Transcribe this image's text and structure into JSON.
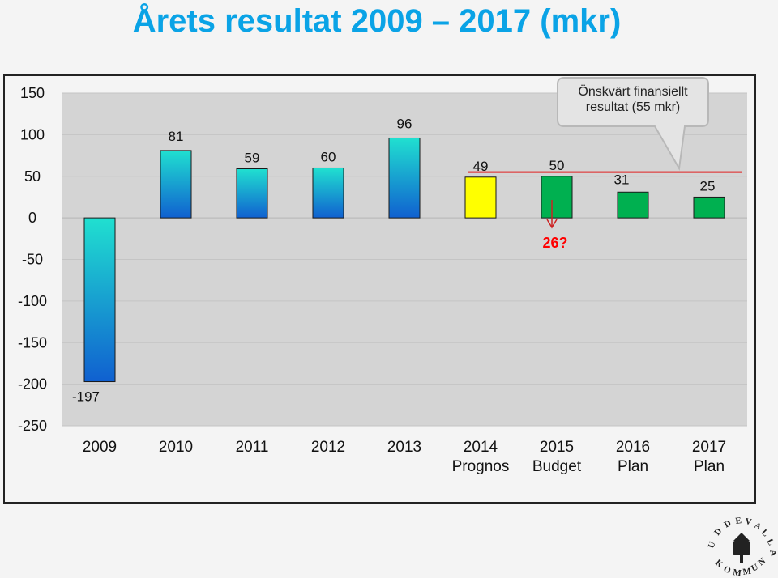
{
  "title": "Årets resultat 2009 – 2017 (mkr)",
  "chart_data": {
    "type": "bar",
    "title": "Årets resultat 2009 – 2017 (mkr)",
    "categories": [
      "2009",
      "2010",
      "2011",
      "2012",
      "2013",
      "2014",
      "2015",
      "2016",
      "2017"
    ],
    "category_sublabels": [
      "",
      "",
      "",
      "",
      "",
      "Prognos",
      "Budget",
      "Plan",
      "Plan"
    ],
    "values": [
      -197,
      81,
      59,
      60,
      96,
      49,
      50,
      31,
      25
    ],
    "data_labels": [
      "-197",
      "81",
      "59",
      "60",
      "96",
      "49",
      "50",
      "31",
      "25"
    ],
    "bar_colors": [
      "gradient",
      "gradient",
      "gradient",
      "gradient",
      "gradient",
      "#ffff00",
      "#00b050",
      "#00b050",
      "#00b050"
    ],
    "ylim": [
      -250,
      150
    ],
    "yticks": [
      150,
      100,
      50,
      0,
      -50,
      -100,
      -150,
      -200,
      -250
    ],
    "grid": true,
    "reference_line": {
      "value": 55,
      "color": "#e02020"
    },
    "callout": {
      "text_line1": "Önskvärt finansiellt",
      "text_line2": "resultat (55 mkr)"
    },
    "annotation": {
      "text": "26?",
      "color": "#ff0000"
    }
  },
  "logo": {
    "text": "UDDEVALLA KOMMUN"
  },
  "colors": {
    "title": "#0aa3e6",
    "plot_bg": "#d4d4d4",
    "grid": "#c4c4c4",
    "gradient_top": "#20e0d0",
    "gradient_bottom": "#1060d0"
  }
}
